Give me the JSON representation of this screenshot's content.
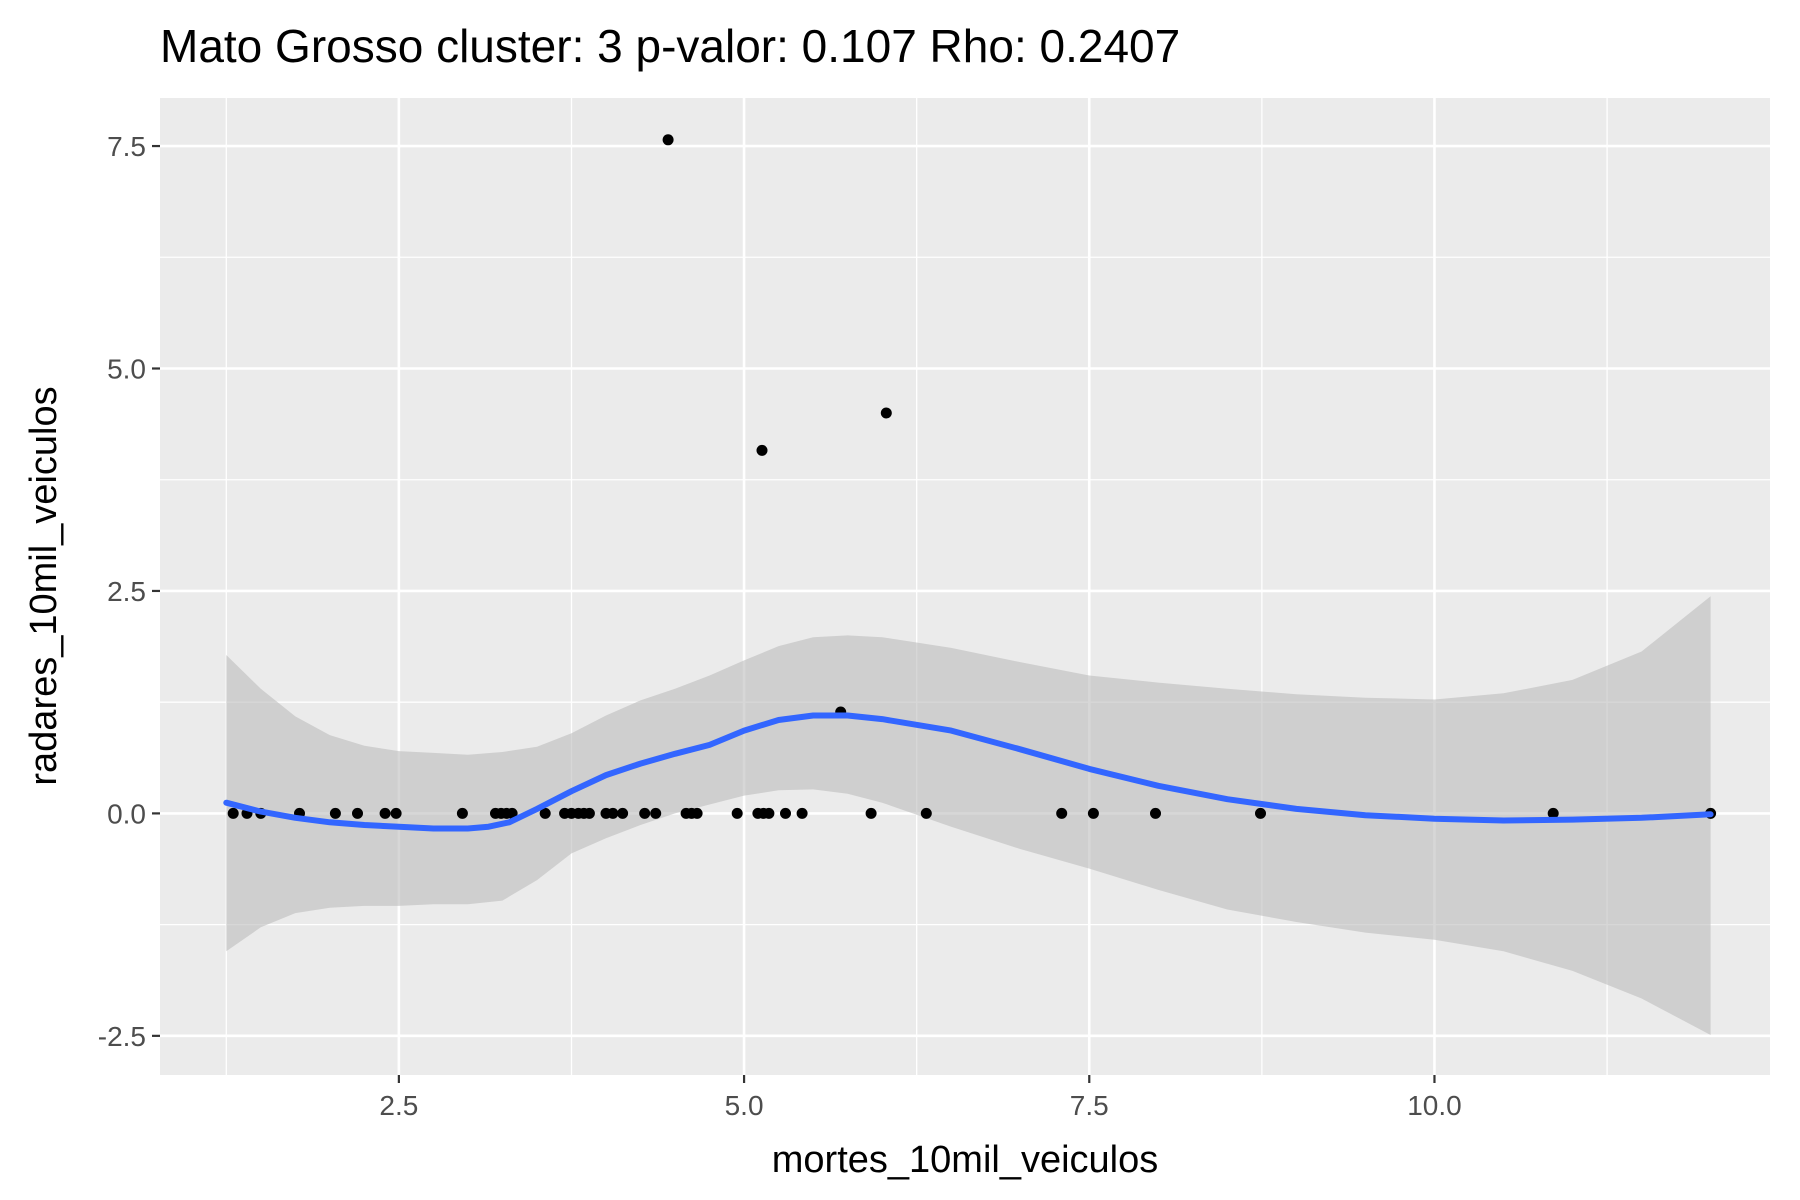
{
  "chart_data": {
    "type": "scatter",
    "title": "Mato Grosso cluster: 3 p-valor: 0.107 Rho: 0.2407",
    "xlabel": "mortes_10mil_veiculos",
    "ylabel": "radares_10mil_veiculos",
    "xlim": [
      0.77,
      12.43
    ],
    "ylim": [
      -2.94,
      8.04
    ],
    "x_ticks": [
      2.5,
      5.0,
      7.5,
      10.0
    ],
    "x_tick_labels": [
      "2.5",
      "5.0",
      "7.5",
      "10.0"
    ],
    "y_ticks": [
      -2.5,
      0.0,
      2.5,
      5.0,
      7.5
    ],
    "y_tick_labels": [
      "-2.5",
      "0.0",
      "2.5",
      "5.0",
      "7.5"
    ],
    "grid": true,
    "colors": {
      "panel_background": "#ebebeb",
      "grid": "#ffffff",
      "points": "#000000",
      "smooth_line": "#3366ff",
      "confidence_band": "#bdbdbd",
      "tick_label": "#4d4d4d",
      "tick_mark": "#333333"
    },
    "points": [
      {
        "x": 1.3,
        "y": 0.0
      },
      {
        "x": 1.4,
        "y": 0.0
      },
      {
        "x": 1.5,
        "y": 0.0
      },
      {
        "x": 1.78,
        "y": 0.0
      },
      {
        "x": 2.04,
        "y": 0.0
      },
      {
        "x": 2.2,
        "y": 0.0
      },
      {
        "x": 2.4,
        "y": 0.0
      },
      {
        "x": 2.48,
        "y": 0.0
      },
      {
        "x": 2.96,
        "y": 0.0
      },
      {
        "x": 3.2,
        "y": 0.0
      },
      {
        "x": 3.24,
        "y": 0.0
      },
      {
        "x": 3.28,
        "y": 0.0
      },
      {
        "x": 3.32,
        "y": 0.0
      },
      {
        "x": 3.56,
        "y": 0.0
      },
      {
        "x": 3.7,
        "y": 0.0
      },
      {
        "x": 3.75,
        "y": 0.0
      },
      {
        "x": 3.8,
        "y": 0.0
      },
      {
        "x": 3.84,
        "y": 0.0
      },
      {
        "x": 3.88,
        "y": 0.0
      },
      {
        "x": 4.0,
        "y": 0.0
      },
      {
        "x": 4.05,
        "y": 0.0
      },
      {
        "x": 4.12,
        "y": 0.0
      },
      {
        "x": 4.28,
        "y": 0.0
      },
      {
        "x": 4.36,
        "y": 0.0
      },
      {
        "x": 4.58,
        "y": 0.0
      },
      {
        "x": 4.62,
        "y": 0.0
      },
      {
        "x": 4.66,
        "y": 0.0
      },
      {
        "x": 4.95,
        "y": 0.0
      },
      {
        "x": 5.1,
        "y": 0.0
      },
      {
        "x": 5.14,
        "y": 0.0
      },
      {
        "x": 5.18,
        "y": 0.0
      },
      {
        "x": 5.3,
        "y": 0.0
      },
      {
        "x": 5.42,
        "y": 0.0
      },
      {
        "x": 5.92,
        "y": 0.0
      },
      {
        "x": 6.32,
        "y": 0.0
      },
      {
        "x": 7.3,
        "y": 0.0
      },
      {
        "x": 7.53,
        "y": 0.0
      },
      {
        "x": 7.98,
        "y": 0.0
      },
      {
        "x": 8.74,
        "y": 0.0
      },
      {
        "x": 10.86,
        "y": 0.0
      },
      {
        "x": 12.0,
        "y": 0.0
      },
      {
        "x": 4.45,
        "y": 7.57
      },
      {
        "x": 5.13,
        "y": 4.08
      },
      {
        "x": 6.03,
        "y": 4.5
      },
      {
        "x": 5.7,
        "y": 1.14
      }
    ],
    "smooth": {
      "method": "loess",
      "line": [
        [
          1.25,
          0.12
        ],
        [
          1.5,
          0.02
        ],
        [
          1.75,
          -0.05
        ],
        [
          2.0,
          -0.1
        ],
        [
          2.25,
          -0.13
        ],
        [
          2.5,
          -0.15
        ],
        [
          2.75,
          -0.17
        ],
        [
          3.0,
          -0.17
        ],
        [
          3.15,
          -0.15
        ],
        [
          3.3,
          -0.1
        ],
        [
          3.5,
          0.05
        ],
        [
          3.75,
          0.25
        ],
        [
          4.0,
          0.43
        ],
        [
          4.25,
          0.56
        ],
        [
          4.5,
          0.67
        ],
        [
          4.75,
          0.77
        ],
        [
          5.0,
          0.93
        ],
        [
          5.25,
          1.05
        ],
        [
          5.5,
          1.1
        ],
        [
          5.75,
          1.1
        ],
        [
          6.0,
          1.06
        ],
        [
          6.5,
          0.93
        ],
        [
          7.0,
          0.72
        ],
        [
          7.5,
          0.5
        ],
        [
          8.0,
          0.31
        ],
        [
          8.5,
          0.16
        ],
        [
          9.0,
          0.05
        ],
        [
          9.5,
          -0.02
        ],
        [
          10.0,
          -0.06
        ],
        [
          10.5,
          -0.08
        ],
        [
          11.0,
          -0.07
        ],
        [
          11.5,
          -0.05
        ],
        [
          12.0,
          -0.01
        ]
      ],
      "band_upper": [
        [
          1.25,
          1.78
        ],
        [
          1.5,
          1.4
        ],
        [
          1.75,
          1.09
        ],
        [
          2.0,
          0.88
        ],
        [
          2.25,
          0.76
        ],
        [
          2.5,
          0.7
        ],
        [
          2.75,
          0.68
        ],
        [
          3.0,
          0.66
        ],
        [
          3.25,
          0.69
        ],
        [
          3.5,
          0.75
        ],
        [
          3.75,
          0.9
        ],
        [
          4.0,
          1.1
        ],
        [
          4.25,
          1.27
        ],
        [
          4.5,
          1.4
        ],
        [
          4.75,
          1.55
        ],
        [
          5.0,
          1.72
        ],
        [
          5.25,
          1.88
        ],
        [
          5.5,
          1.98
        ],
        [
          5.75,
          2.0
        ],
        [
          6.0,
          1.98
        ],
        [
          6.5,
          1.86
        ],
        [
          7.0,
          1.7
        ],
        [
          7.5,
          1.55
        ],
        [
          8.0,
          1.47
        ],
        [
          8.5,
          1.4
        ],
        [
          9.0,
          1.34
        ],
        [
          9.5,
          1.3
        ],
        [
          10.0,
          1.28
        ],
        [
          10.5,
          1.35
        ],
        [
          11.0,
          1.5
        ],
        [
          11.5,
          1.82
        ],
        [
          12.0,
          2.44
        ]
      ],
      "band_lower": [
        [
          1.25,
          -1.55
        ],
        [
          1.5,
          -1.28
        ],
        [
          1.75,
          -1.12
        ],
        [
          2.0,
          -1.06
        ],
        [
          2.25,
          -1.04
        ],
        [
          2.5,
          -1.04
        ],
        [
          2.75,
          -1.02
        ],
        [
          3.0,
          -1.02
        ],
        [
          3.25,
          -0.98
        ],
        [
          3.5,
          -0.75
        ],
        [
          3.75,
          -0.45
        ],
        [
          4.0,
          -0.28
        ],
        [
          4.25,
          -0.13
        ],
        [
          4.5,
          0.0
        ],
        [
          4.75,
          0.1
        ],
        [
          5.0,
          0.2
        ],
        [
          5.25,
          0.26
        ],
        [
          5.5,
          0.27
        ],
        [
          5.75,
          0.22
        ],
        [
          6.0,
          0.12
        ],
        [
          6.5,
          -0.15
        ],
        [
          7.0,
          -0.4
        ],
        [
          7.5,
          -0.62
        ],
        [
          8.0,
          -0.86
        ],
        [
          8.5,
          -1.08
        ],
        [
          9.0,
          -1.22
        ],
        [
          9.5,
          -1.34
        ],
        [
          10.0,
          -1.42
        ],
        [
          10.5,
          -1.55
        ],
        [
          11.0,
          -1.77
        ],
        [
          11.5,
          -2.08
        ],
        [
          12.0,
          -2.49
        ]
      ]
    }
  }
}
